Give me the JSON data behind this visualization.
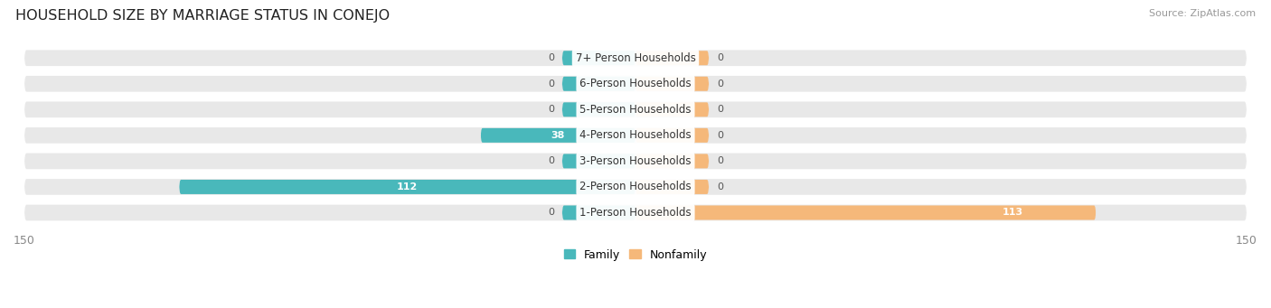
{
  "title": "HOUSEHOLD SIZE BY MARRIAGE STATUS IN CONEJO",
  "source": "Source: ZipAtlas.com",
  "categories": [
    "7+ Person Households",
    "6-Person Households",
    "5-Person Households",
    "4-Person Households",
    "3-Person Households",
    "2-Person Households",
    "1-Person Households"
  ],
  "family_values": [
    0,
    0,
    0,
    38,
    0,
    112,
    0
  ],
  "nonfamily_values": [
    0,
    0,
    0,
    0,
    0,
    0,
    113
  ],
  "family_color": "#49b8bb",
  "nonfamily_color": "#f5b87a",
  "xlim": 150,
  "bar_bg_color": "#e8e8e8",
  "title_fontsize": 11.5,
  "source_fontsize": 8,
  "label_fontsize": 8.5,
  "value_fontsize": 8,
  "legend_fontsize": 9,
  "bar_height": 0.62,
  "min_nub_size": 18
}
